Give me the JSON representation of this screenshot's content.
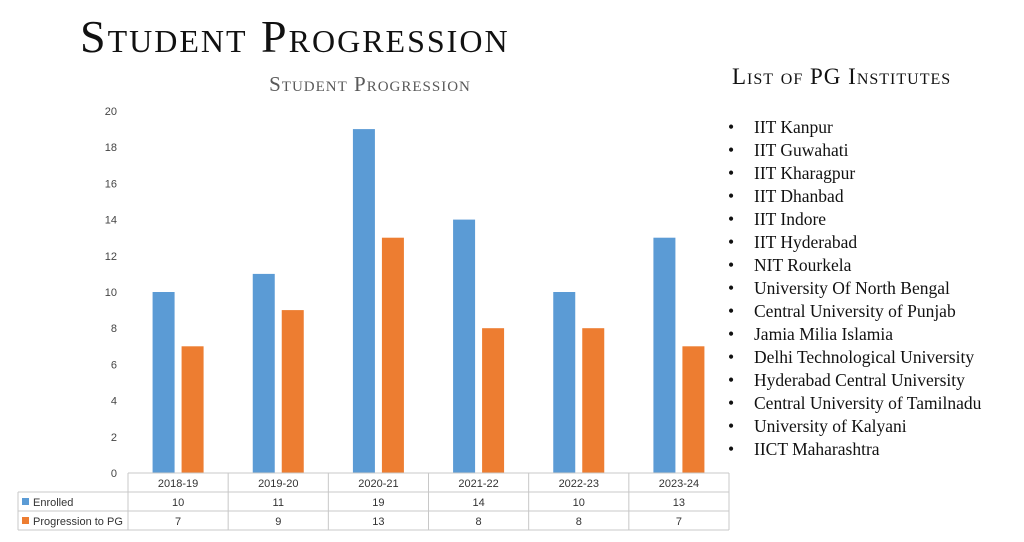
{
  "page": {
    "title": "Student Progression"
  },
  "chart_data": {
    "type": "bar",
    "title": "Student Progression",
    "categories": [
      "2018-19",
      "2019-20",
      "2020-21",
      "2021-22",
      "2022-23",
      "2023-24"
    ],
    "series": [
      {
        "name": "Enrolled",
        "color": "#5b9bd5",
        "values": [
          10,
          11,
          19,
          14,
          10,
          13
        ]
      },
      {
        "name": "Progression to PG",
        "color": "#ed7d31",
        "values": [
          7,
          9,
          13,
          8,
          8,
          7
        ]
      }
    ],
    "ylim": [
      0,
      20
    ],
    "yticks": [
      0,
      2,
      4,
      6,
      8,
      10,
      12,
      14,
      16,
      18,
      20
    ],
    "grid": false,
    "legend": "data-table-below"
  },
  "pg_institutes": {
    "heading": "List of PG Institutes",
    "items": [
      "IIT Kanpur",
      "IIT Guwahati",
      "IIT  Kharagpur",
      "IIT Dhanbad",
      "IIT Indore",
      "IIT Hyderabad",
      "NIT Rourkela",
      "University Of North Bengal",
      "Central University of Punjab",
      "Jamia Milia Islamia",
      "Delhi Technological University",
      "Hyderabad Central University",
      "Central University of Tamilnadu",
      "University of Kalyani",
      "IICT Maharashtra"
    ]
  }
}
